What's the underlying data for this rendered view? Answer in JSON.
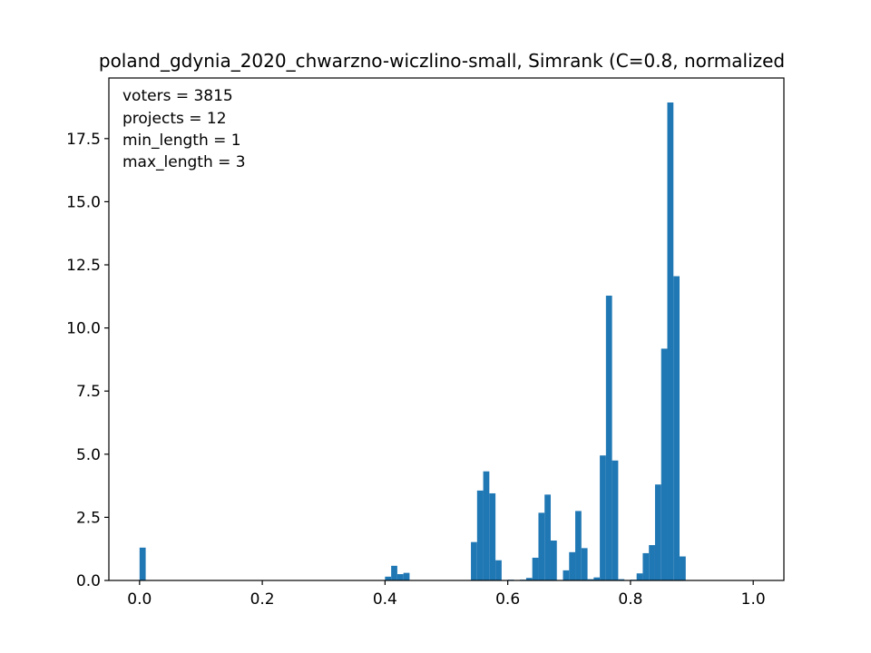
{
  "chart_data": {
    "type": "bar",
    "title": "poland_gdynia_2020_chwarzno-wiczlino-small, Simrank (C=0.8, normalized",
    "xlabel": "",
    "ylabel": "",
    "xlim": [
      -0.05,
      1.05
    ],
    "ylim": [
      0,
      19.9
    ],
    "bin_width": 0.01,
    "bar_color": "#1f77b4",
    "grid": false,
    "x_ticks": [
      "0.0",
      "0.2",
      "0.4",
      "0.6",
      "0.8",
      "1.0"
    ],
    "y_ticks": [
      "0.0",
      "2.5",
      "5.0",
      "7.5",
      "10.0",
      "12.5",
      "15.0",
      "17.5"
    ],
    "annotations": [
      "voters = 3815",
      "projects = 12",
      "min_length = 1",
      "max_length = 3"
    ],
    "bins": [
      {
        "x": 0.0,
        "y": 1.3
      },
      {
        "x": 0.4,
        "y": 0.15
      },
      {
        "x": 0.41,
        "y": 0.58
      },
      {
        "x": 0.42,
        "y": 0.25
      },
      {
        "x": 0.43,
        "y": 0.3
      },
      {
        "x": 0.54,
        "y": 1.52
      },
      {
        "x": 0.55,
        "y": 3.56
      },
      {
        "x": 0.56,
        "y": 4.32
      },
      {
        "x": 0.57,
        "y": 3.45
      },
      {
        "x": 0.58,
        "y": 0.8
      },
      {
        "x": 0.6,
        "y": 0.03
      },
      {
        "x": 0.62,
        "y": 0.03
      },
      {
        "x": 0.63,
        "y": 0.1
      },
      {
        "x": 0.64,
        "y": 0.9
      },
      {
        "x": 0.65,
        "y": 2.68
      },
      {
        "x": 0.66,
        "y": 3.4
      },
      {
        "x": 0.67,
        "y": 1.58
      },
      {
        "x": 0.69,
        "y": 0.4
      },
      {
        "x": 0.7,
        "y": 1.12
      },
      {
        "x": 0.71,
        "y": 2.75
      },
      {
        "x": 0.72,
        "y": 1.28
      },
      {
        "x": 0.73,
        "y": 0.05
      },
      {
        "x": 0.74,
        "y": 0.12
      },
      {
        "x": 0.75,
        "y": 4.95
      },
      {
        "x": 0.76,
        "y": 11.28
      },
      {
        "x": 0.77,
        "y": 4.75
      },
      {
        "x": 0.78,
        "y": 0.05
      },
      {
        "x": 0.8,
        "y": 0.03
      },
      {
        "x": 0.81,
        "y": 0.28
      },
      {
        "x": 0.82,
        "y": 1.08
      },
      {
        "x": 0.83,
        "y": 1.4
      },
      {
        "x": 0.84,
        "y": 3.8
      },
      {
        "x": 0.85,
        "y": 9.18
      },
      {
        "x": 0.86,
        "y": 18.93
      },
      {
        "x": 0.87,
        "y": 12.05
      },
      {
        "x": 0.88,
        "y": 0.95
      }
    ]
  }
}
